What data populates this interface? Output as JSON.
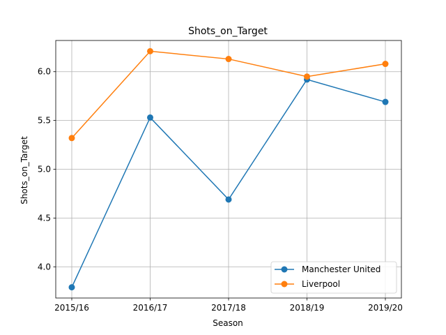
{
  "chart_data": {
    "type": "line",
    "title": "Shots_on_Target",
    "xlabel": "Season",
    "ylabel": "Shots_on_Target",
    "categories": [
      "2015/16",
      "2016/17",
      "2017/18",
      "2018/19",
      "2019/20"
    ],
    "series": [
      {
        "name": "Manchester United",
        "color": "#1f77b4",
        "values": [
          3.79,
          5.53,
          4.69,
          5.92,
          5.69
        ]
      },
      {
        "name": "Liverpool",
        "color": "#ff7f0e",
        "values": [
          5.32,
          6.21,
          6.13,
          5.95,
          6.08
        ]
      }
    ],
    "ylim": [
      3.68,
      6.32
    ],
    "yticks": [
      "4.0",
      "4.5",
      "5.0",
      "5.5",
      "6.0"
    ],
    "grid": true,
    "legend_position": "lower right"
  }
}
